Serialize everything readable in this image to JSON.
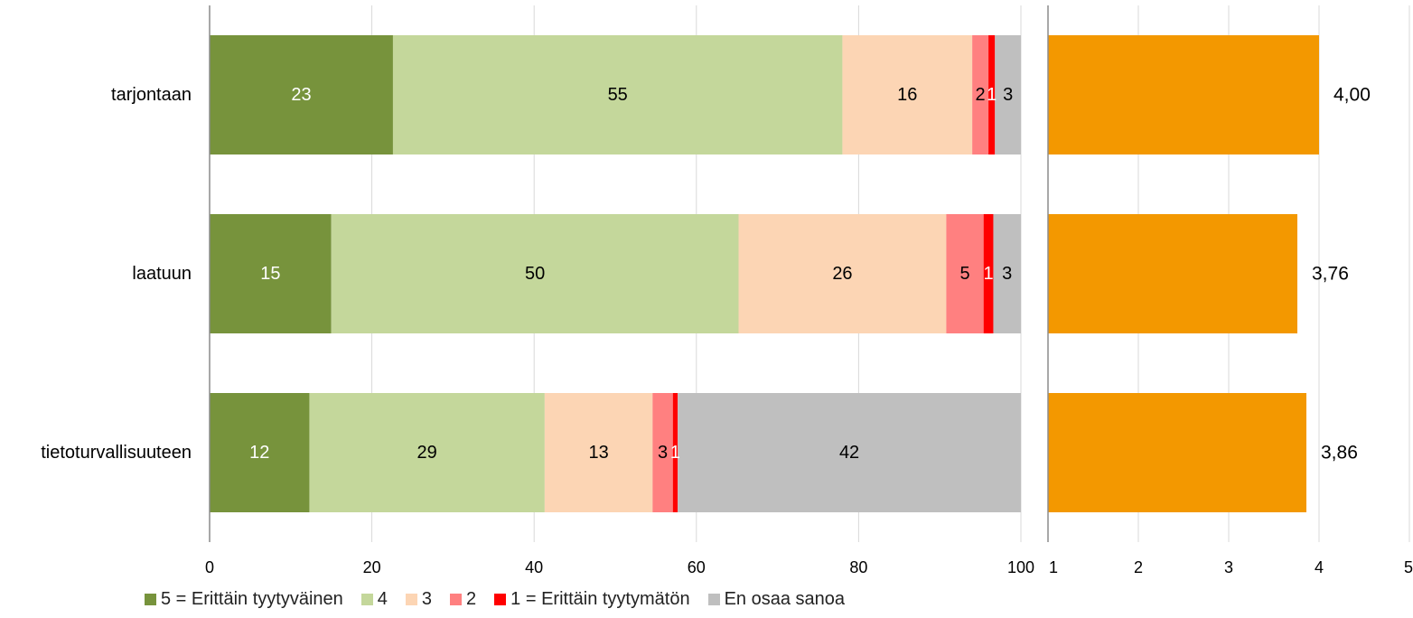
{
  "chart_data": [
    {
      "type": "bar",
      "orientation": "horizontal",
      "stacked": true,
      "categories": [
        "tarjontaan",
        "laatuun",
        "tietoturvallisuuteen"
      ],
      "series": [
        {
          "name": "5 = Erittäin tyytyväinen",
          "color": "#77933c",
          "label_color": "#ffffff",
          "values": [
            22.6,
            15.0,
            12.3
          ],
          "labels": [
            "23",
            "15",
            "12"
          ]
        },
        {
          "name": "4",
          "color": "#c4d79b",
          "label_color": "#000000",
          "values": [
            55.4,
            50.2,
            29.0
          ],
          "labels": [
            "55",
            "50",
            "29"
          ]
        },
        {
          "name": "3",
          "color": "#fcd5b4",
          "label_color": "#000000",
          "values": [
            16.0,
            25.6,
            13.3
          ],
          "labels": [
            "16",
            "26",
            "13"
          ]
        },
        {
          "name": "2",
          "color": "#ff8080",
          "label_color": "#000000",
          "values": [
            2.0,
            4.6,
            2.5
          ],
          "labels": [
            "2",
            "5",
            "3"
          ]
        },
        {
          "name": "1 = Erittäin tyytymätön",
          "color": "#ff0000",
          "label_color": "#ffffff",
          "values": [
            0.8,
            1.2,
            0.6
          ],
          "labels": [
            "1",
            "1",
            "1"
          ]
        },
        {
          "name": "En osaa sanoa",
          "color": "#bfbfbf",
          "label_color": "#000000",
          "values": [
            3.2,
            3.4,
            42.3
          ],
          "labels": [
            "3",
            "3",
            "42"
          ]
        }
      ],
      "xlim": [
        0,
        100
      ],
      "xticks": [
        "0",
        "20",
        "40",
        "60",
        "80",
        "100"
      ],
      "grid": true,
      "legend": "bottom"
    },
    {
      "type": "bar",
      "orientation": "horizontal",
      "categories": [
        "tarjontaan",
        "laatuun",
        "tietoturvallisuuteen"
      ],
      "values": [
        4.0,
        3.76,
        3.86
      ],
      "labels": [
        "4,00",
        "3,76",
        "3,86"
      ],
      "color": "#f39800",
      "xlim": [
        1,
        5
      ],
      "xticks": [
        "1",
        "2",
        "3",
        "4",
        "5"
      ],
      "grid": true
    }
  ]
}
